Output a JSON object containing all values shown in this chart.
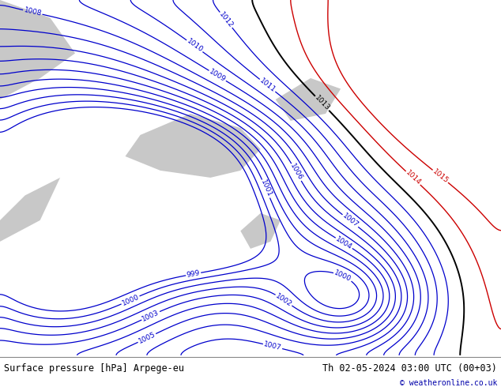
{
  "title_left": "Surface pressure [hPa] Arpege-eu",
  "title_right": "Th 02-05-2024 03:00 UTC (00+03)",
  "copyright": "© weatheronline.co.uk",
  "bg_color": "#b8d878",
  "footer_bg": "#ffffff",
  "contour_color_blue": "#0000cc",
  "contour_color_black": "#000000",
  "contour_color_red": "#cc0000",
  "label_fontsize": 6.5,
  "footer_fontsize": 8.5,
  "figsize": [
    6.34,
    4.9
  ],
  "dpi": 100,
  "levels_blue": [
    999,
    1000,
    1001,
    1002,
    1003,
    1004,
    1005,
    1006,
    1007,
    1008,
    1009,
    1010,
    1011,
    1012
  ],
  "levels_black": [
    1013
  ],
  "levels_red": [
    1014,
    1015
  ]
}
